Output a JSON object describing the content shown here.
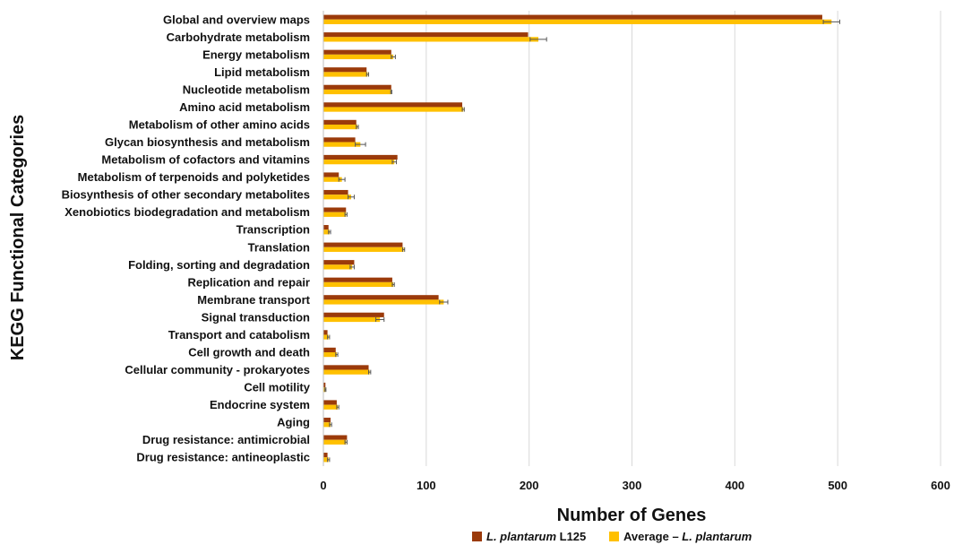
{
  "chart_data": {
    "type": "bar",
    "orientation": "horizontal",
    "xlabel": "Number of Genes",
    "ylabel": "KEGG Functional Categories",
    "xlim": [
      0,
      600
    ],
    "xticks": [
      "0",
      "100",
      "200",
      "300",
      "400",
      "500",
      "600"
    ],
    "grid": "vertical",
    "legend_position": "bottom",
    "categories": [
      "Global and overview maps",
      "Carbohydrate metabolism",
      "Energy metabolism",
      "Lipid metabolism",
      "Nucleotide metabolism",
      "Amino acid metabolism",
      "Metabolism of other amino acids",
      "Glycan biosynthesis and metabolism",
      "Metabolism of cofactors and vitamins",
      "Metabolism of terpenoids and polyketides",
      "Biosynthesis of other secondary metabolites",
      "Xenobiotics biodegradation and metabolism",
      "Transcription",
      "Translation",
      "Folding, sorting and degradation",
      "Replication and repair",
      "Membrane transport",
      "Signal transduction",
      "Transport and catabolism",
      "Cell growth and death",
      "Cellular community - prokaryotes",
      "Cell motility",
      "Endocrine system",
      "Aging",
      "Drug resistance: antimicrobial",
      "Drug resistance: antineoplastic"
    ],
    "series": [
      {
        "name": "L. plantarum L125",
        "legend_italic": "L. plantarum",
        "legend_plain": " L125",
        "color": "#9b3a0a",
        "values": [
          485,
          199,
          66,
          42,
          66,
          135,
          32,
          31,
          72,
          15,
          24,
          22,
          5,
          77,
          30,
          67,
          112,
          59,
          4,
          12,
          44,
          2,
          13,
          7,
          23,
          4
        ]
      },
      {
        "name": "Average – L. plantarum",
        "legend_plain": "Average – ",
        "legend_italic": "L. plantarum",
        "color": "#ffc000",
        "values": [
          494,
          209,
          68,
          43,
          66,
          136,
          33,
          36,
          69,
          18,
          27,
          22,
          6,
          78,
          28,
          68,
          117,
          55,
          5,
          13,
          45,
          2,
          14,
          7,
          22,
          5
        ],
        "errors": [
          8,
          8,
          2,
          1,
          0.5,
          1,
          1,
          5,
          2,
          3,
          3,
          1,
          1,
          1,
          2,
          1,
          4,
          4,
          1,
          1,
          1,
          0.5,
          1,
          1,
          1,
          1
        ]
      }
    ]
  }
}
